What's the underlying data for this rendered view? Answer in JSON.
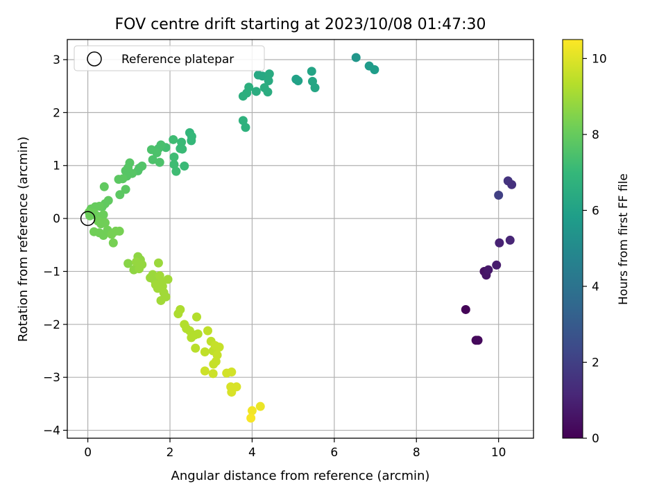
{
  "chart_data": {
    "type": "scatter",
    "title": "FOV centre drift starting at 2023/10/08 01:47:30",
    "xlabel": "Angular distance from reference (arcmin)",
    "ylabel": "Rotation from reference (arcmin)",
    "xlim": [
      -0.5,
      10.85
    ],
    "ylim": [
      -4.15,
      3.38
    ],
    "xticks": [
      0,
      2,
      4,
      6,
      8,
      10
    ],
    "yticks": [
      -4,
      -3,
      -2,
      -1,
      0,
      1,
      2,
      3
    ],
    "grid": true,
    "legend": {
      "placement": "upper-left",
      "entries": [
        "Reference platepar"
      ]
    },
    "reference_point": {
      "x": 0,
      "y": 0
    },
    "colorbar": {
      "label": "Hours from first FF file",
      "range": [
        0,
        10.5
      ],
      "ticks": [
        0,
        2,
        4,
        6,
        8,
        10
      ],
      "colormap": "viridis",
      "colors": [
        "#440154",
        "#482878",
        "#3e4989",
        "#31688e",
        "#26828e",
        "#1f9e89",
        "#35b779",
        "#6ece58",
        "#b5de2b",
        "#fde725"
      ]
    },
    "points": [
      {
        "x": 9.2,
        "y": -1.72,
        "c": 0.1
      },
      {
        "x": 9.45,
        "y": -2.3,
        "c": 0.2
      },
      {
        "x": 9.5,
        "y": -2.3,
        "c": 0.25
      },
      {
        "x": 9.65,
        "y": -1.0,
        "c": 0.5
      },
      {
        "x": 9.7,
        "y": -1.07,
        "c": 0.6
      },
      {
        "x": 9.75,
        "y": -0.97,
        "c": 0.7
      },
      {
        "x": 9.95,
        "y": -0.88,
        "c": 0.8
      },
      {
        "x": 10.02,
        "y": -0.46,
        "c": 1.0
      },
      {
        "x": 10.28,
        "y": -0.41,
        "c": 1.1
      },
      {
        "x": 10.0,
        "y": 0.44,
        "c": 2.0
      },
      {
        "x": 10.23,
        "y": 0.71,
        "c": 1.6
      },
      {
        "x": 10.32,
        "y": 0.64,
        "c": 1.5
      },
      {
        "x": 6.53,
        "y": 3.04,
        "c": 5.5
      },
      {
        "x": 6.85,
        "y": 2.88,
        "c": 5.7
      },
      {
        "x": 6.98,
        "y": 2.81,
        "c": 5.8
      },
      {
        "x": 5.07,
        "y": 2.63,
        "c": 6.0
      },
      {
        "x": 5.12,
        "y": 2.6,
        "c": 6.0
      },
      {
        "x": 5.45,
        "y": 2.78,
        "c": 6.1
      },
      {
        "x": 5.47,
        "y": 2.59,
        "c": 6.2
      },
      {
        "x": 5.53,
        "y": 2.47,
        "c": 6.2
      },
      {
        "x": 4.15,
        "y": 2.71,
        "c": 6.3
      },
      {
        "x": 4.25,
        "y": 2.69,
        "c": 6.3
      },
      {
        "x": 4.42,
        "y": 2.73,
        "c": 6.4
      },
      {
        "x": 4.4,
        "y": 2.6,
        "c": 6.4
      },
      {
        "x": 4.3,
        "y": 2.47,
        "c": 6.5
      },
      {
        "x": 4.38,
        "y": 2.39,
        "c": 6.5
      },
      {
        "x": 4.1,
        "y": 2.4,
        "c": 6.5
      },
      {
        "x": 3.92,
        "y": 2.48,
        "c": 6.6
      },
      {
        "x": 3.87,
        "y": 2.37,
        "c": 6.6
      },
      {
        "x": 3.78,
        "y": 2.31,
        "c": 6.6
      },
      {
        "x": 3.78,
        "y": 1.85,
        "c": 6.7
      },
      {
        "x": 3.84,
        "y": 1.72,
        "c": 6.7
      },
      {
        "x": 2.48,
        "y": 1.62,
        "c": 6.9
      },
      {
        "x": 2.53,
        "y": 1.55,
        "c": 7.0
      },
      {
        "x": 2.52,
        "y": 1.47,
        "c": 7.0
      },
      {
        "x": 2.28,
        "y": 1.44,
        "c": 7.1
      },
      {
        "x": 2.25,
        "y": 1.32,
        "c": 7.1
      },
      {
        "x": 2.3,
        "y": 1.31,
        "c": 7.1
      },
      {
        "x": 2.08,
        "y": 1.49,
        "c": 7.2
      },
      {
        "x": 2.1,
        "y": 1.16,
        "c": 7.2
      },
      {
        "x": 2.1,
        "y": 1.02,
        "c": 7.2
      },
      {
        "x": 2.15,
        "y": 0.89,
        "c": 7.2
      },
      {
        "x": 2.35,
        "y": 0.99,
        "c": 7.1
      },
      {
        "x": 1.9,
        "y": 1.34,
        "c": 7.3
      },
      {
        "x": 1.78,
        "y": 1.39,
        "c": 7.4
      },
      {
        "x": 1.72,
        "y": 1.32,
        "c": 7.4
      },
      {
        "x": 1.68,
        "y": 1.24,
        "c": 7.5
      },
      {
        "x": 1.55,
        "y": 1.3,
        "c": 7.5
      },
      {
        "x": 1.58,
        "y": 1.11,
        "c": 7.5
      },
      {
        "x": 1.75,
        "y": 1.06,
        "c": 7.5
      },
      {
        "x": 1.32,
        "y": 0.99,
        "c": 7.6
      },
      {
        "x": 1.25,
        "y": 0.95,
        "c": 7.6
      },
      {
        "x": 1.22,
        "y": 0.9,
        "c": 7.6
      },
      {
        "x": 1.08,
        "y": 0.85,
        "c": 7.7
      },
      {
        "x": 1.02,
        "y": 1.05,
        "c": 7.7
      },
      {
        "x": 0.98,
        "y": 0.96,
        "c": 7.7
      },
      {
        "x": 0.92,
        "y": 0.9,
        "c": 7.7
      },
      {
        "x": 0.95,
        "y": 0.8,
        "c": 7.7
      },
      {
        "x": 0.85,
        "y": 0.75,
        "c": 7.8
      },
      {
        "x": 0.75,
        "y": 0.74,
        "c": 7.8
      },
      {
        "x": 0.92,
        "y": 0.55,
        "c": 7.8
      },
      {
        "x": 0.78,
        "y": 0.45,
        "c": 7.8
      },
      {
        "x": 0.5,
        "y": 0.34,
        "c": 7.9
      },
      {
        "x": 0.42,
        "y": 0.28,
        "c": 7.9
      },
      {
        "x": 0.35,
        "y": 0.22,
        "c": 7.9
      },
      {
        "x": 0.4,
        "y": 0.6,
        "c": 7.9
      },
      {
        "x": 0.28,
        "y": 0.23,
        "c": 8.0
      },
      {
        "x": 0.18,
        "y": 0.22,
        "c": 8.0
      },
      {
        "x": 0.08,
        "y": 0.18,
        "c": 8.0
      },
      {
        "x": 0.03,
        "y": 0.12,
        "c": 8.1
      },
      {
        "x": 0.05,
        "y": 0.05,
        "c": 8.1
      },
      {
        "x": 0.15,
        "y": 0.1,
        "c": 8.1
      },
      {
        "x": 0.22,
        "y": 0.05,
        "c": 8.1
      },
      {
        "x": 0.3,
        "y": 0.02,
        "c": 8.1
      },
      {
        "x": 0.38,
        "y": 0.07,
        "c": 8.1
      },
      {
        "x": 0.25,
        "y": -0.05,
        "c": 8.2
      },
      {
        "x": 0.32,
        "y": -0.1,
        "c": 8.2
      },
      {
        "x": 0.42,
        "y": -0.08,
        "c": 8.2
      },
      {
        "x": 0.15,
        "y": -0.25,
        "c": 8.2
      },
      {
        "x": 0.28,
        "y": -0.27,
        "c": 8.2
      },
      {
        "x": 0.38,
        "y": -0.32,
        "c": 8.2
      },
      {
        "x": 0.48,
        "y": -0.22,
        "c": 8.2
      },
      {
        "x": 0.58,
        "y": -0.3,
        "c": 8.3
      },
      {
        "x": 0.68,
        "y": -0.24,
        "c": 8.3
      },
      {
        "x": 0.77,
        "y": -0.24,
        "c": 8.3
      },
      {
        "x": 0.62,
        "y": -0.46,
        "c": 8.3
      },
      {
        "x": 0.98,
        "y": -0.85,
        "c": 8.6
      },
      {
        "x": 1.12,
        "y": -0.97,
        "c": 8.7
      },
      {
        "x": 1.2,
        "y": -0.9,
        "c": 8.7
      },
      {
        "x": 1.22,
        "y": -0.72,
        "c": 8.7
      },
      {
        "x": 1.28,
        "y": -0.78,
        "c": 8.7
      },
      {
        "x": 1.32,
        "y": -0.87,
        "c": 8.8
      },
      {
        "x": 1.18,
        "y": -0.82,
        "c": 8.8
      },
      {
        "x": 1.25,
        "y": -0.95,
        "c": 8.8
      },
      {
        "x": 1.72,
        "y": -0.84,
        "c": 8.9
      },
      {
        "x": 1.52,
        "y": -1.12,
        "c": 8.9
      },
      {
        "x": 1.58,
        "y": -1.06,
        "c": 8.9
      },
      {
        "x": 1.63,
        "y": -1.17,
        "c": 8.9
      },
      {
        "x": 1.65,
        "y": -1.25,
        "c": 9.0
      },
      {
        "x": 1.7,
        "y": -1.32,
        "c": 9.0
      },
      {
        "x": 1.75,
        "y": -1.08,
        "c": 9.0
      },
      {
        "x": 1.8,
        "y": -1.2,
        "c": 9.0
      },
      {
        "x": 1.82,
        "y": -1.28,
        "c": 9.0
      },
      {
        "x": 1.85,
        "y": -1.4,
        "c": 9.0
      },
      {
        "x": 1.9,
        "y": -1.48,
        "c": 9.0
      },
      {
        "x": 1.78,
        "y": -1.55,
        "c": 9.0
      },
      {
        "x": 1.95,
        "y": -1.15,
        "c": 9.0
      },
      {
        "x": 2.2,
        "y": -1.8,
        "c": 9.2
      },
      {
        "x": 2.25,
        "y": -1.72,
        "c": 9.2
      },
      {
        "x": 2.35,
        "y": -2.0,
        "c": 9.3
      },
      {
        "x": 2.4,
        "y": -2.08,
        "c": 9.3
      },
      {
        "x": 2.48,
        "y": -2.12,
        "c": 9.3
      },
      {
        "x": 2.52,
        "y": -2.25,
        "c": 9.3
      },
      {
        "x": 2.6,
        "y": -2.2,
        "c": 9.3
      },
      {
        "x": 2.68,
        "y": -2.18,
        "c": 9.3
      },
      {
        "x": 2.65,
        "y": -1.86,
        "c": 9.3
      },
      {
        "x": 2.62,
        "y": -2.45,
        "c": 9.4
      },
      {
        "x": 2.85,
        "y": -2.52,
        "c": 9.5
      },
      {
        "x": 2.92,
        "y": -2.12,
        "c": 9.5
      },
      {
        "x": 3.0,
        "y": -2.32,
        "c": 9.5
      },
      {
        "x": 3.05,
        "y": -2.5,
        "c": 9.5
      },
      {
        "x": 3.1,
        "y": -2.4,
        "c": 9.6
      },
      {
        "x": 3.15,
        "y": -2.58,
        "c": 9.6
      },
      {
        "x": 3.2,
        "y": -2.43,
        "c": 9.6
      },
      {
        "x": 3.12,
        "y": -2.7,
        "c": 9.6
      },
      {
        "x": 3.06,
        "y": -2.75,
        "c": 9.6
      },
      {
        "x": 2.85,
        "y": -2.88,
        "c": 9.7
      },
      {
        "x": 3.05,
        "y": -2.93,
        "c": 9.7
      },
      {
        "x": 3.38,
        "y": -2.92,
        "c": 9.8
      },
      {
        "x": 3.5,
        "y": -2.9,
        "c": 9.8
      },
      {
        "x": 3.48,
        "y": -3.18,
        "c": 9.9
      },
      {
        "x": 3.5,
        "y": -3.28,
        "c": 9.9
      },
      {
        "x": 3.62,
        "y": -3.18,
        "c": 9.9
      },
      {
        "x": 4.2,
        "y": -3.55,
        "c": 10.2
      },
      {
        "x": 4.0,
        "y": -3.63,
        "c": 10.3
      },
      {
        "x": 3.97,
        "y": -3.77,
        "c": 10.4
      }
    ]
  }
}
